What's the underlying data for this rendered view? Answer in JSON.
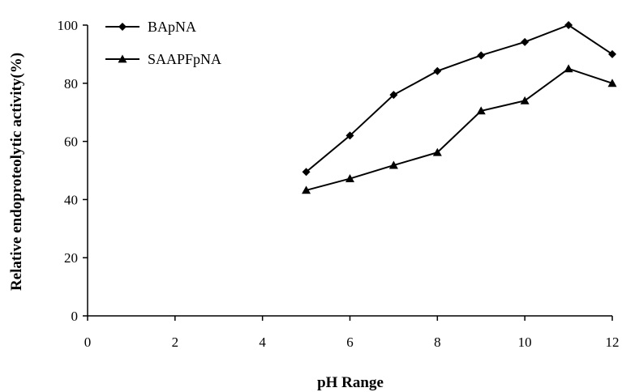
{
  "chart_data": {
    "type": "line",
    "xlabel": "pH Range",
    "ylabel": "Relative endoproteolytic activity(%)",
    "xlim": [
      0,
      12
    ],
    "ylim": [
      0,
      100
    ],
    "x_ticks": [
      0,
      2,
      4,
      6,
      8,
      10,
      12
    ],
    "y_ticks": [
      0,
      20,
      40,
      60,
      80,
      100
    ],
    "grid": false,
    "legend_position": "top-left",
    "x": [
      5,
      6,
      7,
      8,
      9,
      10,
      11,
      12
    ],
    "series": [
      {
        "name": "BApNA",
        "marker": "diamond",
        "color": "#000000",
        "values": [
          49.5,
          62,
          76,
          84.2,
          89.6,
          94.2,
          100,
          90
        ]
      },
      {
        "name": "SAAPFpNA",
        "marker": "triangle",
        "color": "#000000",
        "values": [
          43.2,
          47.2,
          51.8,
          56.2,
          70.5,
          74,
          85,
          80
        ]
      }
    ]
  }
}
